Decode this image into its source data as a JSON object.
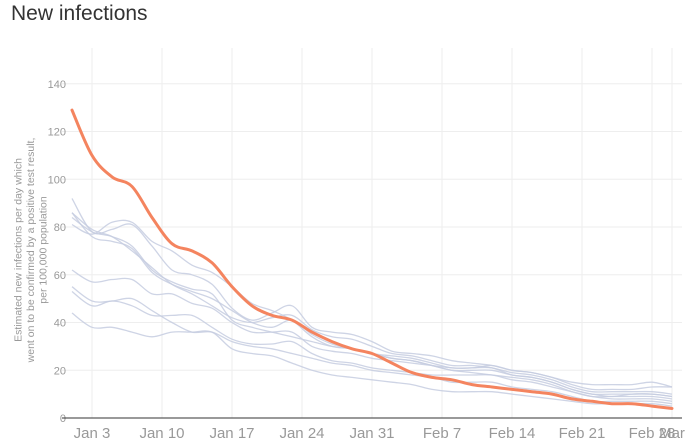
{
  "title": "New infections",
  "chart_data": {
    "type": "line",
    "ylabel_lines": [
      "Estimated new infections per day which",
      "went on to be confirmed by a positive test result,",
      "per 100,000 population"
    ],
    "ylim": [
      0,
      155
    ],
    "yticks": [
      0,
      20,
      40,
      60,
      80,
      100,
      120,
      140
    ],
    "x_range_days": [
      -1,
      61
    ],
    "xticks": [
      {
        "label": "Jan 3",
        "day": 2
      },
      {
        "label": "Jan 10",
        "day": 9
      },
      {
        "label": "Jan 17",
        "day": 16
      },
      {
        "label": "Jan 24",
        "day": 23
      },
      {
        "label": "Jan 31",
        "day": 30
      },
      {
        "label": "Feb 7",
        "day": 37
      },
      {
        "label": "Feb 14",
        "day": 44
      },
      {
        "label": "Feb 21",
        "day": 51
      },
      {
        "label": "Feb 28",
        "day": 58
      },
      {
        "label": "Mar",
        "day": 60
      }
    ],
    "x_days": [
      0,
      2,
      4,
      6,
      8,
      10,
      12,
      14,
      16,
      18,
      20,
      22,
      24,
      26,
      28,
      30,
      32,
      34,
      36,
      38,
      40,
      42,
      44,
      46,
      48,
      50,
      52,
      54,
      56,
      58,
      60
    ],
    "highlight_color": "#f4845f",
    "background_color": "#c6cce0",
    "grid": true,
    "highlight": {
      "values": [
        129,
        110,
        101,
        97,
        84,
        73,
        70,
        65,
        55,
        47,
        43,
        41,
        36,
        32,
        29,
        27,
        23,
        19,
        17,
        16,
        14,
        13,
        12,
        11,
        10,
        8,
        7,
        6,
        6,
        5,
        4
      ]
    },
    "background_series": [
      {
        "values": [
          92,
          78,
          79,
          81,
          72,
          62,
          60,
          56,
          46,
          41,
          44,
          47,
          38,
          36,
          35,
          32,
          28,
          27,
          26,
          24,
          23,
          22,
          20,
          19,
          17,
          14,
          12,
          12,
          12,
          13,
          13
        ]
      },
      {
        "values": [
          86,
          79,
          76,
          70,
          63,
          56,
          52,
          47,
          42,
          40,
          42,
          43,
          37,
          34,
          33,
          30,
          27,
          26,
          24,
          22,
          22,
          21,
          19,
          18,
          16,
          13,
          11,
          11,
          11,
          11,
          10
        ]
      },
      {
        "values": [
          86,
          76,
          74,
          71,
          61,
          56,
          53,
          50,
          45,
          40,
          38,
          41,
          35,
          31,
          29,
          27,
          25,
          24,
          22,
          20,
          20,
          20,
          18,
          17,
          15,
          12,
          10,
          10,
          10,
          10,
          9
        ]
      },
      {
        "values": [
          84,
          78,
          76,
          72,
          62,
          57,
          54,
          52,
          41,
          38,
          36,
          34,
          32,
          30,
          29,
          27,
          25,
          24,
          22,
          20,
          19,
          18,
          17,
          16,
          14,
          11,
          9,
          9,
          9,
          9,
          8
        ]
      },
      {
        "values": [
          81,
          77,
          82,
          82,
          74,
          70,
          64,
          61,
          55,
          48,
          45,
          41,
          34,
          30,
          29,
          27,
          26,
          25,
          23,
          21,
          21,
          21,
          18,
          17,
          15,
          12,
          10,
          9,
          10,
          10,
          9
        ]
      },
      {
        "values": [
          62,
          57,
          58,
          58,
          52,
          52,
          48,
          46,
          40,
          36,
          36,
          36,
          30,
          28,
          27,
          25,
          24,
          23,
          22,
          21,
          21,
          22,
          20,
          19,
          17,
          15,
          14,
          14,
          14,
          15,
          13
        ]
      },
      {
        "values": [
          53,
          47,
          49,
          47,
          43,
          43,
          43,
          38,
          33,
          31,
          31,
          32,
          27,
          24,
          23,
          21,
          20,
          19,
          18,
          18,
          18,
          18,
          16,
          15,
          13,
          11,
          9,
          8,
          8,
          8,
          7
        ]
      },
      {
        "values": [
          55,
          49,
          49,
          50,
          45,
          40,
          36,
          36,
          32,
          30,
          29,
          27,
          25,
          23,
          22,
          20,
          19,
          18,
          17,
          15,
          15,
          15,
          13,
          12,
          11,
          9,
          7,
          7,
          7,
          7,
          6
        ]
      },
      {
        "values": [
          44,
          38,
          38,
          36,
          34,
          36,
          36,
          36,
          29,
          27,
          26,
          23,
          20,
          18,
          17,
          16,
          15,
          14,
          12,
          11,
          11,
          11,
          10,
          9,
          8,
          7,
          6,
          6,
          6,
          6,
          5
        ]
      }
    ]
  }
}
